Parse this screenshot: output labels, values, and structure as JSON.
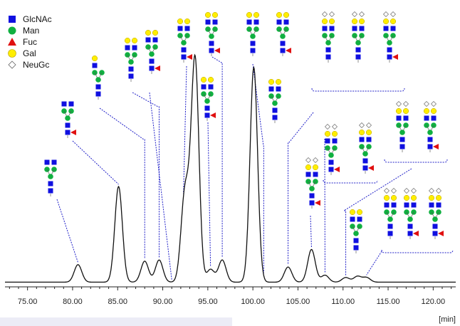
{
  "legend": {
    "items": [
      {
        "label": "GlcNAc",
        "icon": "blue-square-icon",
        "color": "#1010e0"
      },
      {
        "label": "Man",
        "icon": "green-circle-icon",
        "color": "#10b040"
      },
      {
        "label": "Fuc",
        "icon": "red-triangle-icon",
        "color": "#e01010"
      },
      {
        "label": "Gal",
        "icon": "yellow-circle-icon",
        "color": "#ffee00"
      },
      {
        "label": "NeuGc",
        "icon": "white-diamond-icon",
        "color": "#ffffff"
      }
    ]
  },
  "colors": {
    "trace": "#111111",
    "leader": "#2020c8",
    "glcnac": "#1010e0",
    "man": "#10b040",
    "fuc": "#e01010",
    "gal": "#ffee00",
    "neugc": "#ffffff"
  },
  "chart_data": {
    "type": "line",
    "title": "",
    "xlabel": "[min]",
    "ylabel": "",
    "xlim": [
      72.5,
      122.5
    ],
    "x_ticks": [
      "75.00",
      "80.00",
      "85.00",
      "90.00",
      "95.00",
      "100.00",
      "105.00",
      "110.00",
      "115.00",
      "120.00"
    ],
    "baseline": 0.02,
    "peaks": [
      {
        "t": 80.6,
        "h": 0.075
      },
      {
        "t": 85.1,
        "h": 0.41
      },
      {
        "t": 88.0,
        "h": 0.09
      },
      {
        "t": 89.6,
        "h": 0.095
      },
      {
        "t": 92.4,
        "h": 0.32
      },
      {
        "t": 92.9,
        "h": 0.14
      },
      {
        "t": 93.6,
        "h": 0.93
      },
      {
        "t": 95.3,
        "h": 0.055
      },
      {
        "t": 96.6,
        "h": 0.095
      },
      {
        "t": 100.1,
        "h": 0.92
      },
      {
        "t": 103.9,
        "h": 0.065
      },
      {
        "t": 106.5,
        "h": 0.14
      },
      {
        "t": 108.0,
        "h": 0.03
      },
      {
        "t": 110.3,
        "h": 0.02
      },
      {
        "t": 111.6,
        "h": 0.025
      },
      {
        "t": 112.6,
        "h": 0.02
      }
    ],
    "annotated_peaks": [
      80.6,
      85.1,
      88.0,
      89.6,
      91.0,
      92.3,
      93.6,
      95.3,
      96.6,
      100.1,
      101.2,
      103.9,
      106.5,
      108.0,
      110.3,
      111.6,
      112.6
    ]
  }
}
